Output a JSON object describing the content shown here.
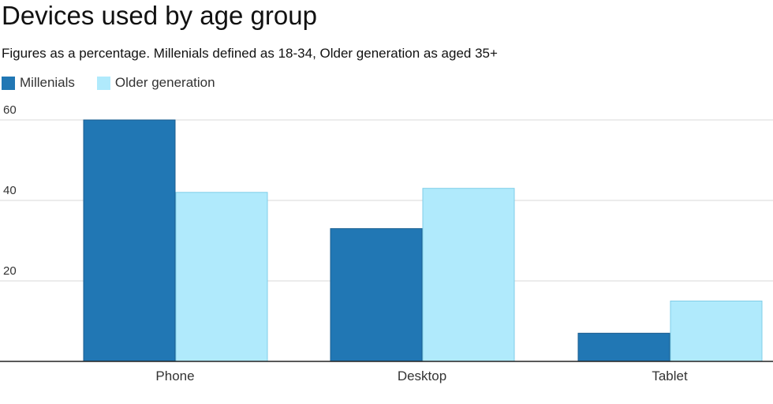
{
  "chart_data": {
    "type": "bar",
    "title": "Devices used by age group",
    "subtitle": "Figures as a percentage. Millenials defined as 18-34, Older generation as aged 35+",
    "categories": [
      "Phone",
      "Desktop",
      "Tablet"
    ],
    "series": [
      {
        "name": "Millenials",
        "values": [
          60,
          33,
          7
        ],
        "color": "#2177b4",
        "stroke": "#1a5e8f"
      },
      {
        "name": "Older generation",
        "values": [
          42,
          43,
          15
        ],
        "color": "#b0eafc",
        "stroke": "#7fcde8"
      }
    ],
    "ylim": [
      0,
      60
    ],
    "yticks": [
      20,
      40,
      60
    ],
    "grid": true,
    "legend": "top-left",
    "xlabel": "",
    "ylabel": ""
  }
}
